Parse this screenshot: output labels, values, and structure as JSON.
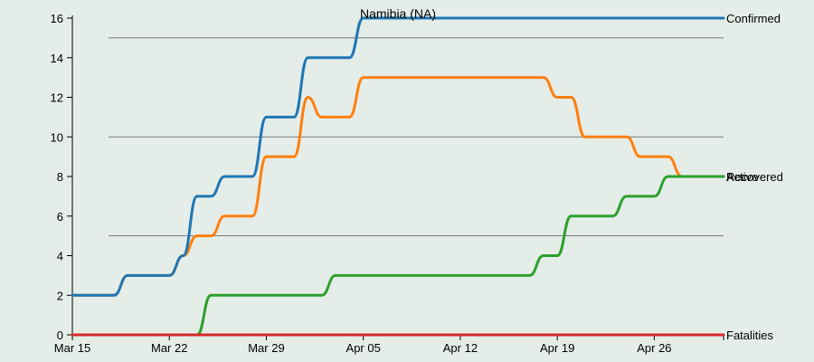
{
  "chart_data": {
    "type": "line",
    "title": "Namibia (NA)",
    "xlabel": "",
    "ylabel": "",
    "x_ticks": [
      "Mar 15",
      "Mar 22",
      "Mar 29",
      "Apr 05",
      "Apr 12",
      "Apr 19",
      "Apr 26"
    ],
    "x_tick_days": [
      0,
      7,
      14,
      21,
      28,
      35,
      42
    ],
    "xlim": [
      0,
      47
    ],
    "ylim": [
      0,
      16
    ],
    "y_ticks": [
      0,
      2,
      4,
      6,
      8,
      10,
      12,
      14,
      16
    ],
    "gridlines_y": [
      5,
      10,
      15
    ],
    "series": [
      {
        "name": "Confirmed",
        "color": "#1f77b4",
        "values": [
          2,
          2,
          2,
          2,
          3,
          3,
          3,
          3,
          4,
          7,
          7,
          8,
          8,
          8,
          11,
          11,
          11,
          14,
          14,
          14,
          14,
          16,
          16,
          16,
          16,
          16,
          16,
          16,
          16,
          16,
          16,
          16,
          16,
          16,
          16,
          16,
          16,
          16,
          16,
          16,
          16,
          16,
          16,
          16,
          16,
          16,
          16,
          16
        ]
      },
      {
        "name": "Active",
        "color": "#ff7f0e",
        "values": [
          2,
          2,
          2,
          2,
          3,
          3,
          3,
          3,
          4,
          5,
          5,
          6,
          6,
          6,
          9,
          9,
          9,
          12,
          11,
          11,
          11,
          13,
          13,
          13,
          13,
          13,
          13,
          13,
          13,
          13,
          13,
          13,
          13,
          13,
          13,
          12,
          12,
          10,
          10,
          10,
          10,
          9,
          9,
          9,
          8,
          8,
          8,
          8
        ]
      },
      {
        "name": "Recovered",
        "color": "#2ca02c",
        "values": [
          0,
          0,
          0,
          0,
          0,
          0,
          0,
          0,
          0,
          0,
          2,
          2,
          2,
          2,
          2,
          2,
          2,
          2,
          2,
          3,
          3,
          3,
          3,
          3,
          3,
          3,
          3,
          3,
          3,
          3,
          3,
          3,
          3,
          3,
          4,
          4,
          6,
          6,
          6,
          6,
          7,
          7,
          7,
          8,
          8,
          8,
          8,
          8
        ]
      },
      {
        "name": "Fatalities",
        "color": "#d62728",
        "values": [
          0,
          0,
          0,
          0,
          0,
          0,
          0,
          0,
          0,
          0,
          0,
          0,
          0,
          0,
          0,
          0,
          0,
          0,
          0,
          0,
          0,
          0,
          0,
          0,
          0,
          0,
          0,
          0,
          0,
          0,
          0,
          0,
          0,
          0,
          0,
          0,
          0,
          0,
          0,
          0,
          0,
          0,
          0,
          0,
          0,
          0,
          0,
          0
        ]
      }
    ]
  }
}
